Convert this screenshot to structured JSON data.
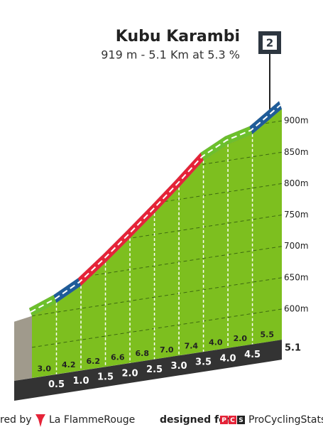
{
  "chart_data": {
    "type": "climb-profile",
    "title": "Kubu Karambi",
    "subtitle": "919 m - 5.1 Km at 5.3 %",
    "category": "2",
    "x": [
      0,
      0.5,
      1.0,
      1.5,
      2.0,
      2.5,
      3.0,
      3.5,
      4.0,
      4.5,
      5.1
    ],
    "elevations": [
      650,
      665,
      686,
      717,
      750,
      784,
      819,
      856,
      876,
      886,
      919
    ],
    "segments": {
      "values": [
        3.0,
        4.2,
        6.2,
        6.6,
        6.8,
        7.0,
        7.4,
        4.0,
        2.0,
        5.5
      ],
      "value_labels": [
        "3.0",
        "4.2",
        "6.2",
        "6.6",
        "6.8",
        "7.0",
        "7.4",
        "4.0",
        "2.0",
        "5.5"
      ],
      "colors": [
        "#6cc02c",
        "#1f5c99",
        "#e52338",
        "#e52338",
        "#e52338",
        "#e52338",
        "#e52338",
        "#6cc02c",
        "#6cc02c",
        "#1f5c99"
      ]
    },
    "body_color": "#7dbf1f",
    "xlim": [
      0,
      5.1
    ],
    "xticks": [
      0.5,
      {
        "value": 1,
        "label": "1.0"
      },
      1.5,
      {
        "value": 2,
        "label": "2.0"
      },
      2.5,
      {
        "value": 3,
        "label": "3.0"
      },
      3.5,
      {
        "value": 4,
        "label": "4.0"
      },
      4.5
    ],
    "ylim": [
      560,
      940
    ],
    "yticks": [
      {
        "value": 600,
        "label": "600m"
      },
      {
        "value": 650,
        "label": "650m"
      },
      {
        "value": 700,
        "label": "700m"
      },
      {
        "value": 750,
        "label": "750m"
      },
      {
        "value": 800,
        "label": "800m"
      },
      {
        "value": 850,
        "label": "850m"
      },
      {
        "value": 900,
        "label": "900m"
      }
    ],
    "grid": true,
    "footer": {
      "powered": "red by",
      "brand": "La FlammeRouge",
      "designed": "designed for",
      "pcs_letters": [
        "P",
        "C",
        "S"
      ],
      "site": "ProCyclingStats"
    }
  }
}
